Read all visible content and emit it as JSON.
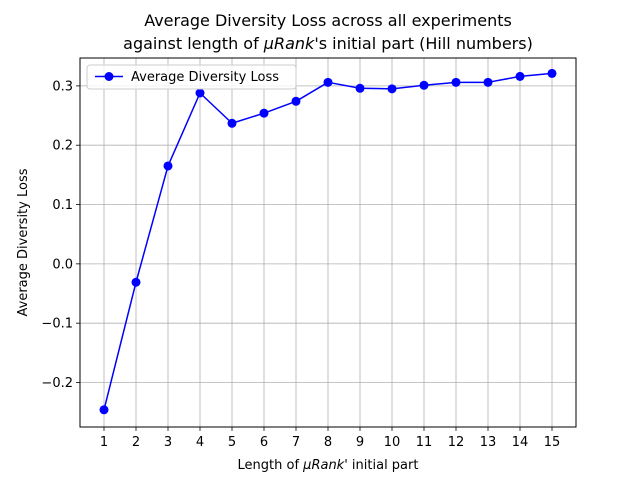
{
  "chart_data": {
    "type": "line",
    "title": {
      "line1": "Average Diversity Loss across all experiments",
      "line2_pre": "against length of ",
      "line2_italic": "μRank",
      "line2_post": "'s initial part (Hill numbers)"
    },
    "xlabel": {
      "pre": "Length of ",
      "italic": "μRank",
      "post": "' initial part"
    },
    "ylabel": "Average Diversity Loss",
    "x": [
      1,
      2,
      3,
      4,
      5,
      6,
      7,
      8,
      9,
      10,
      11,
      12,
      13,
      14,
      15
    ],
    "series": [
      {
        "name": "Average Diversity Loss",
        "color": "#0000ff",
        "values": [
          -0.246,
          -0.031,
          0.165,
          0.288,
          0.237,
          0.254,
          0.274,
          0.306,
          0.296,
          0.295,
          0.301,
          0.306,
          0.306,
          0.316,
          0.321
        ]
      }
    ],
    "xlim": [
      0.25,
      15.75
    ],
    "ylim": [
      -0.275,
      0.347
    ],
    "xticks": [
      "1",
      "2",
      "3",
      "4",
      "5",
      "6",
      "7",
      "8",
      "9",
      "10",
      "11",
      "12",
      "13",
      "14",
      "15"
    ],
    "yticks": [
      {
        "value": -0.2,
        "label": "−0.2"
      },
      {
        "value": -0.1,
        "label": "−0.1"
      },
      {
        "value": 0.0,
        "label": "0.0"
      },
      {
        "value": 0.1,
        "label": "0.1"
      },
      {
        "value": 0.2,
        "label": "0.2"
      },
      {
        "value": 0.3,
        "label": "0.3"
      }
    ],
    "grid": true,
    "legend": "upper-left",
    "marker": "circle"
  }
}
